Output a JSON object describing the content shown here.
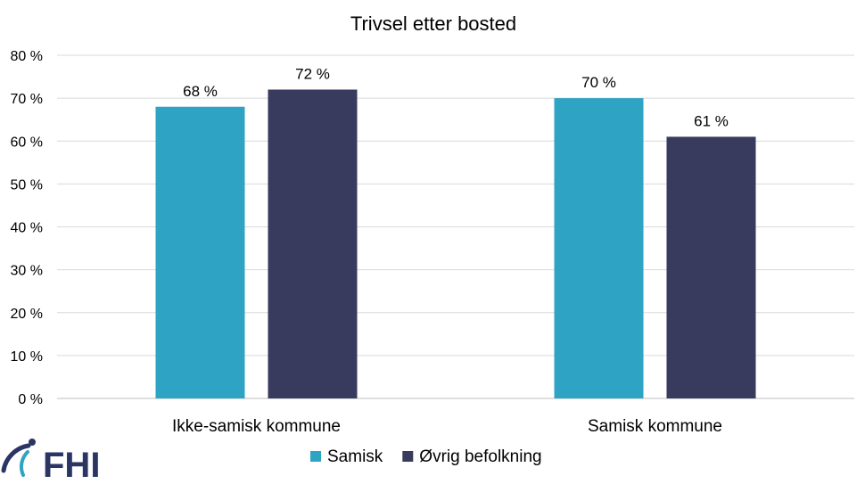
{
  "chart_data": {
    "type": "bar",
    "title": "Trivsel etter bosted",
    "categories": [
      "Ikke-samisk kommune",
      "Samisk kommune"
    ],
    "series": [
      {
        "name": "Samisk",
        "values": [
          68,
          70
        ],
        "labels": [
          "68 %",
          "70 %"
        ],
        "color": "#2fa3c3"
      },
      {
        "name": "Øvrig befolkning",
        "values": [
          72,
          61
        ],
        "labels": [
          "72 %",
          "61 %"
        ],
        "color": "#383a5e"
      }
    ],
    "ylim": [
      0,
      80
    ],
    "yticks": [
      0,
      10,
      20,
      30,
      40,
      50,
      60,
      70,
      80
    ],
    "ytick_labels": [
      "0 %",
      "10 %",
      "20 %",
      "30 %",
      "40 %",
      "50 %",
      "60 %",
      "70 %",
      "80 %"
    ],
    "xlabel": "",
    "ylabel": "",
    "grid": true,
    "legend": "bottom"
  },
  "logo": {
    "text": "FHI",
    "color": "#2a3564"
  }
}
